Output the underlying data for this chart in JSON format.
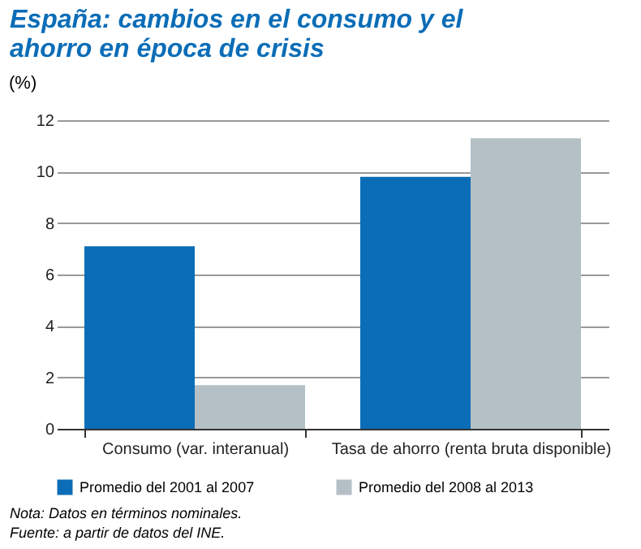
{
  "chart_data": {
    "type": "bar",
    "title": "España: cambios en el consumo y el ahorro en época de crisis",
    "ylabel": "(%)",
    "categories": [
      "Consumo (var. interanual)",
      "Tasa de ahorro (renta bruta disponible)"
    ],
    "series": [
      {
        "name": "Promedio del 2001 al 2007",
        "color": "#0b6db7",
        "values": [
          7.1,
          9.8
        ]
      },
      {
        "name": "Promedio del 2008 al 2013",
        "color": "#b4c0c6",
        "values": [
          1.7,
          11.3
        ]
      }
    ],
    "ylim": [
      0,
      12
    ],
    "yticks": [
      0,
      2,
      4,
      6,
      8,
      10,
      12
    ],
    "grid": "y",
    "legend": "bottom",
    "annotations": [
      "Nota: Datos en términos nominales.",
      "Fuente: a partir de datos del INE."
    ]
  }
}
